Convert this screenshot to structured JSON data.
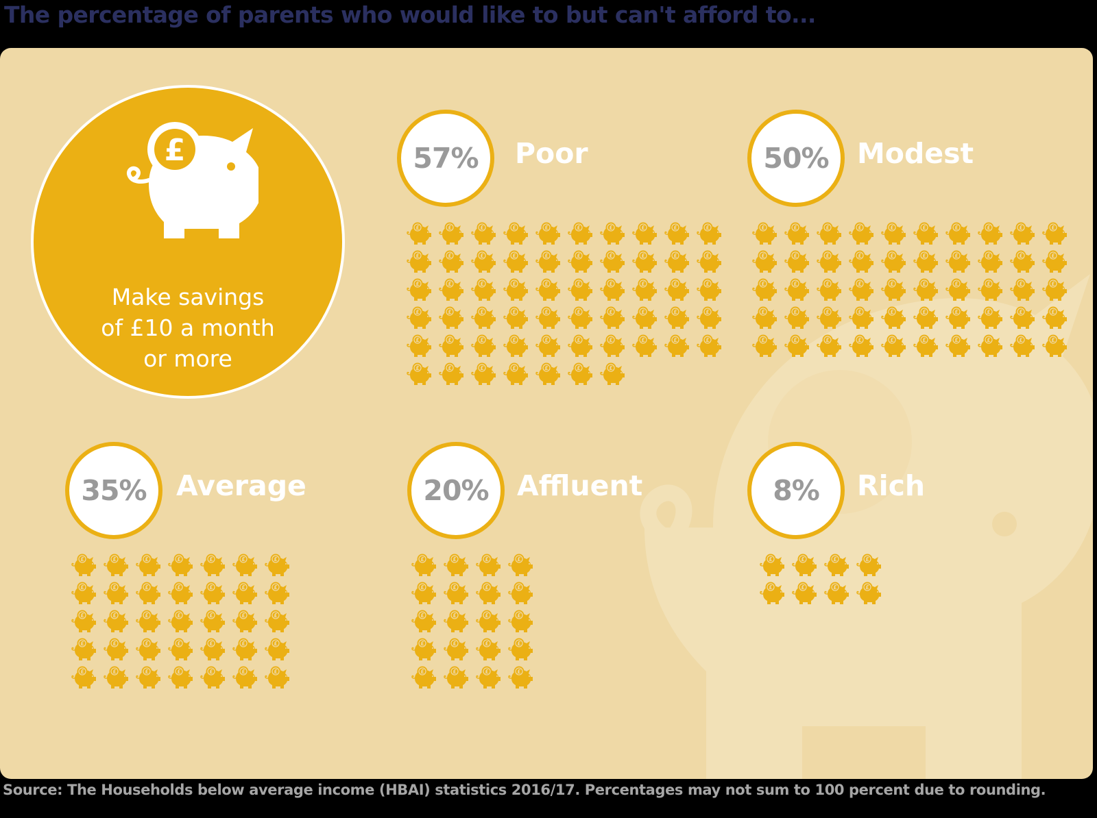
{
  "title": "The percentage of parents who would like to but can't afford to...",
  "hero": {
    "icon": "piggy-bank-pound-icon",
    "line1": "Make savings",
    "line2": "of £10 a month",
    "line3": "or more"
  },
  "groups": [
    {
      "key": "poor",
      "percent": "57%",
      "label": "Poor",
      "icons": 57,
      "cols": 10
    },
    {
      "key": "modest",
      "percent": "50%",
      "label": "Modest",
      "icons": 50,
      "cols": 10
    },
    {
      "key": "average",
      "percent": "35%",
      "label": "Average",
      "icons": 35,
      "cols": 7
    },
    {
      "key": "affluent",
      "percent": "20%",
      "label": "Affluent",
      "icons": 20,
      "cols": 4
    },
    {
      "key": "rich",
      "percent": "8%",
      "label": "Rich",
      "icons": 8,
      "cols": 4
    }
  ],
  "footer": "Source: The Households below average income (HBAI) statistics 2016/17. Percentages may not sum to 100 percent due to rounding.",
  "colors": {
    "background": "#000000",
    "panel": "#efd9a6",
    "accent": "#ebb014",
    "title": "#2b3060",
    "badge_text": "#9a9a9a",
    "footer_text": "#a6a6a6"
  },
  "chart_data": {
    "type": "bar",
    "title": "The percentage of parents who would like to but can't afford to... Make savings of £10 a month or more",
    "categories": [
      "Poor",
      "Modest",
      "Average",
      "Affluent",
      "Rich"
    ],
    "values": [
      57,
      50,
      35,
      20,
      8
    ],
    "unit": "%",
    "representation": "pictogram (1 piggy-bank icon = 1%)",
    "xlabel": "",
    "ylabel": "Percentage of parents",
    "ylim": [
      0,
      100
    ],
    "note": "Source: The Households below average income (HBAI) statistics 2016/17. Percentages may not sum to 100 percent due to rounding."
  }
}
